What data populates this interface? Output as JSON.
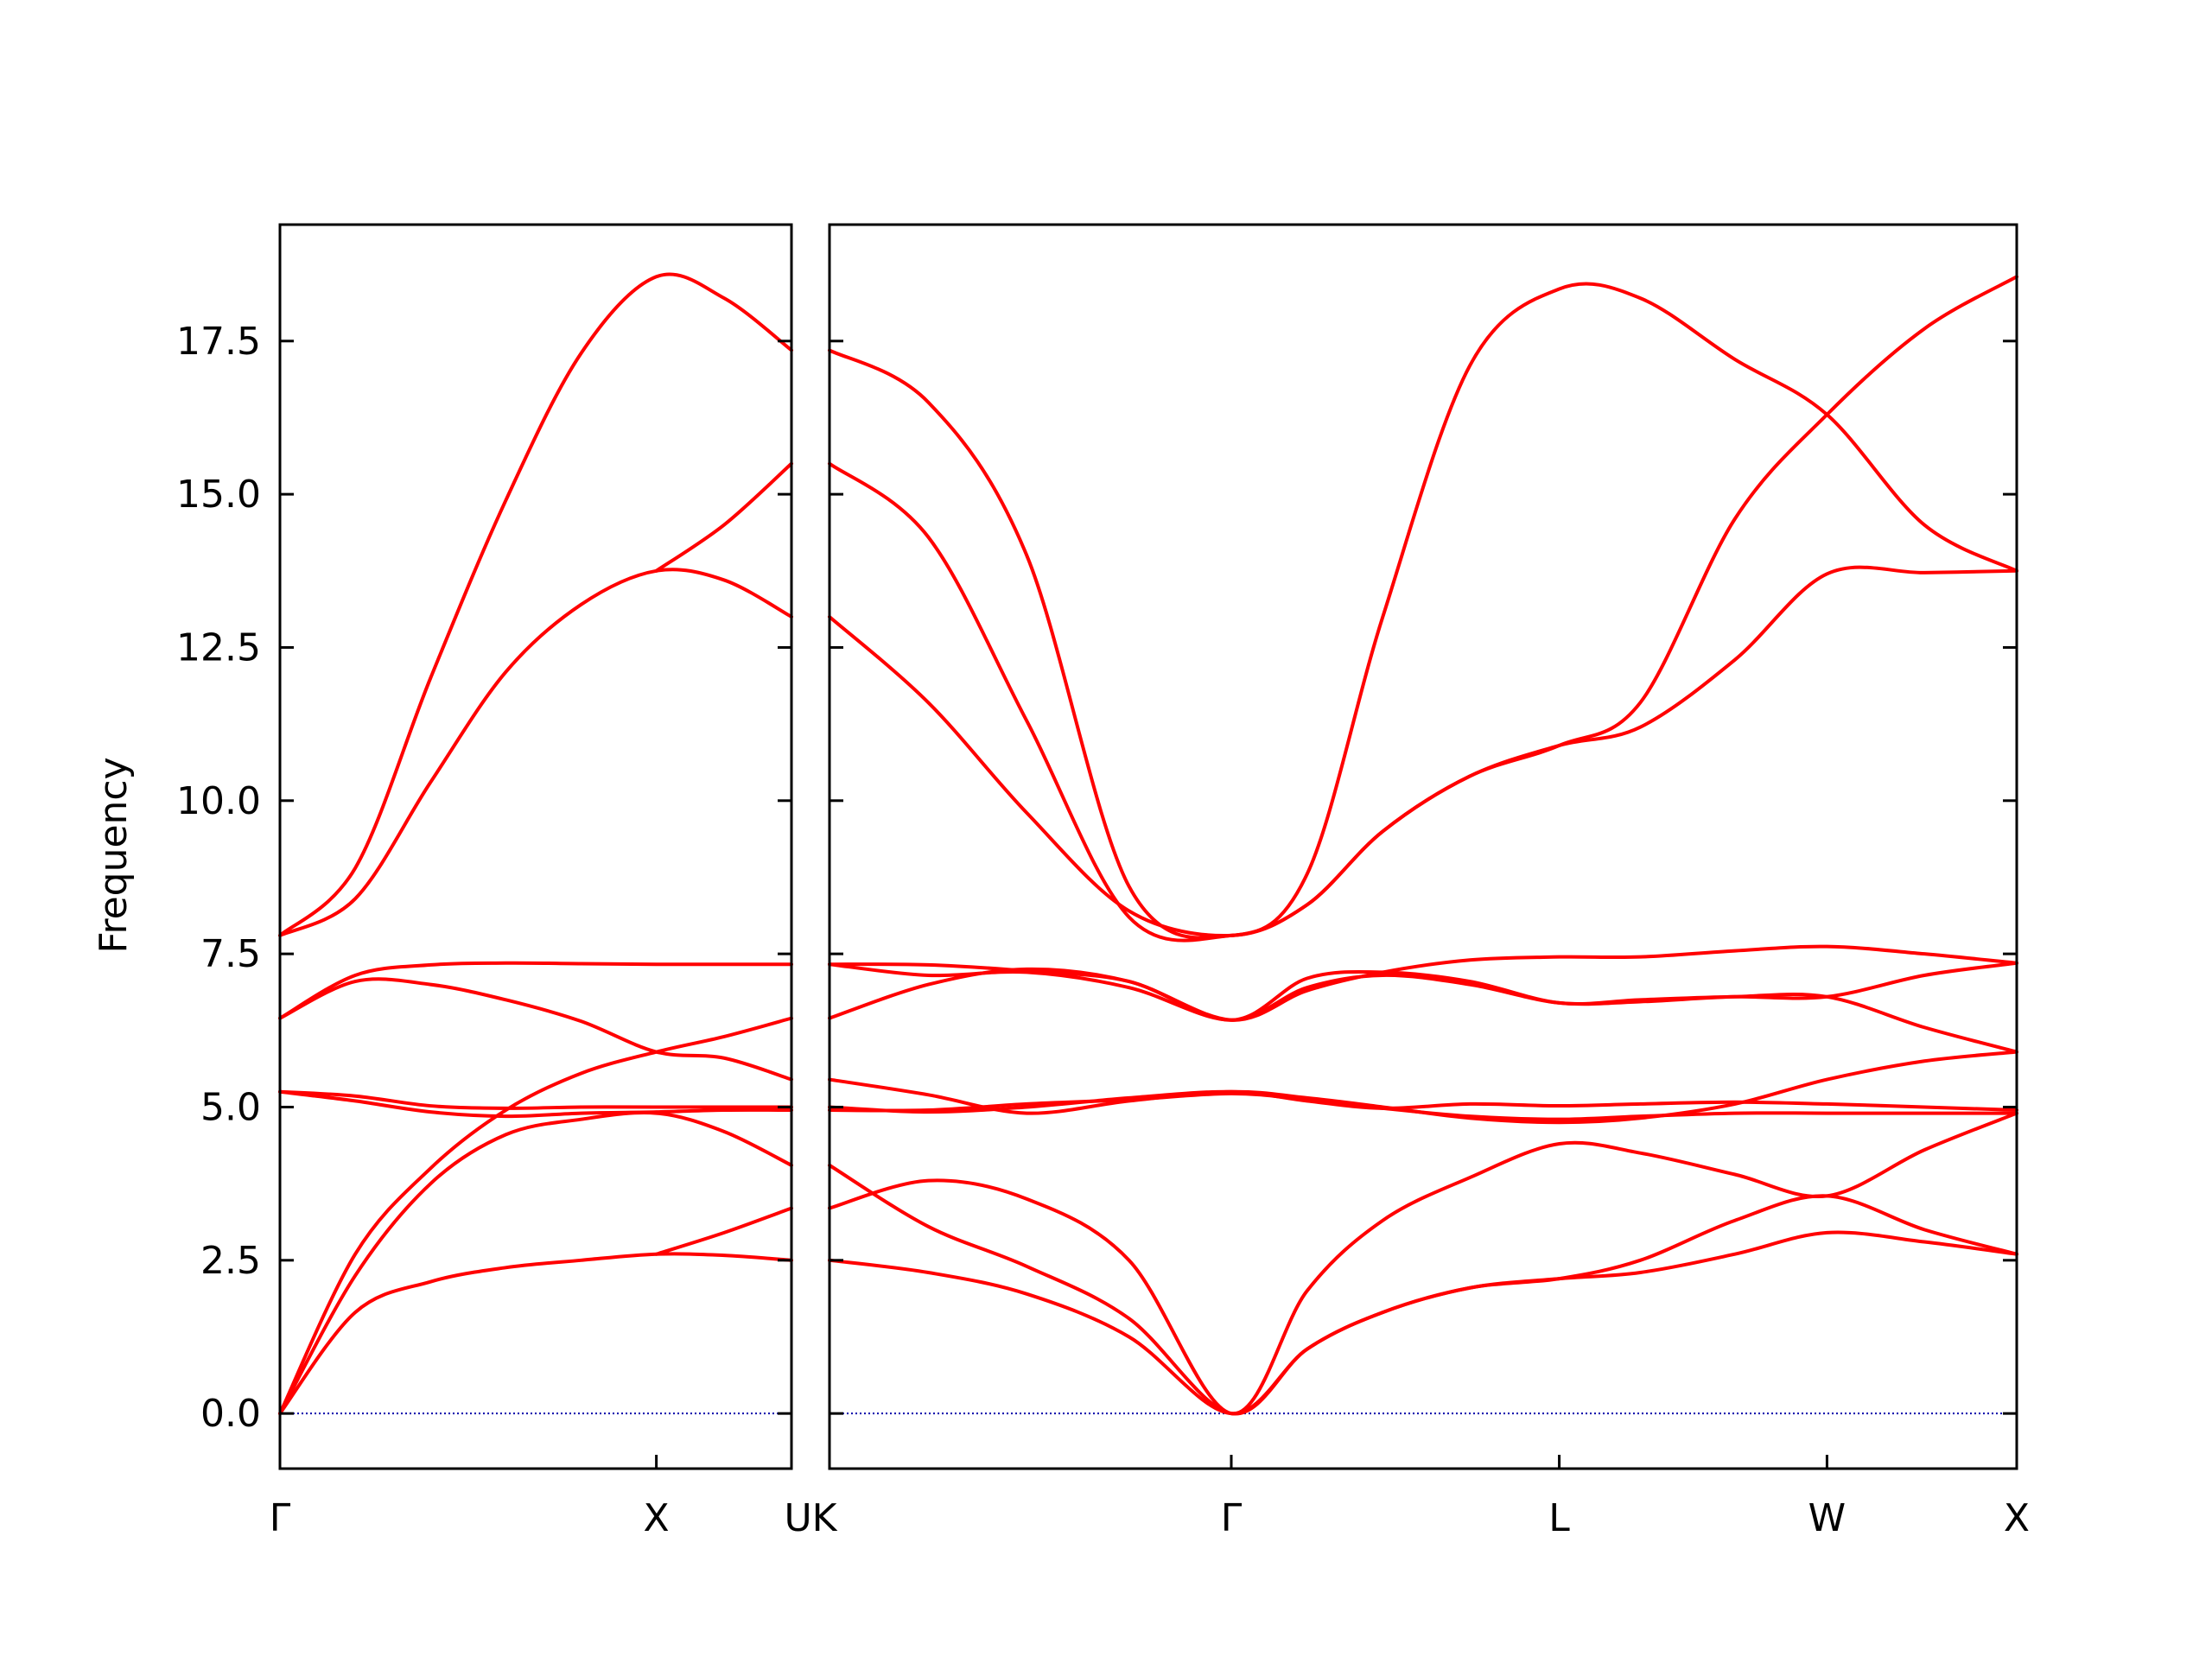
{
  "chart_data": {
    "type": "line",
    "ylabel": "Frequency",
    "xlabel": "",
    "ylim": [
      -0.9,
      19.4
    ],
    "yticks": [
      "0.0",
      "2.5",
      "5.0",
      "7.5",
      "10.0",
      "12.5",
      "15.0",
      "17.5"
    ],
    "ytick_values": [
      0.0,
      2.5,
      5.0,
      7.5,
      10.0,
      12.5,
      15.0,
      17.5
    ],
    "grid": false,
    "legend": "none",
    "line_color": "#ff0000",
    "zero_line_color": "#0000aa",
    "x_tick_labels": [
      "Γ",
      "X",
      "UK",
      "Γ",
      "L",
      "W",
      "X"
    ],
    "panels": [
      {
        "x_range": [
          0,
          1.359
        ],
        "ticks": [
          {
            "x": 0,
            "label": "Γ"
          },
          {
            "x": 1.0,
            "label": "X"
          },
          {
            "x": 1.359,
            "label": "U"
          }
        ],
        "bands": [
          {
            "x": [
              0,
              0.2,
              0.4,
              0.6,
              0.8,
              1.0,
              1.18,
              1.359
            ],
            "y": [
              0.0,
              1.65,
              2.15,
              2.38,
              2.5,
              2.6,
              2.58,
              2.5
            ]
          },
          {
            "x": [
              0,
              0.2,
              0.4,
              0.6,
              0.8,
              1.0,
              1.18,
              1.359
            ],
            "y": [
              0.0,
              2.25,
              3.75,
              4.55,
              4.8,
              4.9,
              4.6,
              4.05
            ]
          },
          {
            "x": [
              0,
              0.2,
              0.4,
              0.6,
              0.8,
              1.0,
              1.18,
              1.359
            ],
            "y": [
              0.0,
              2.6,
              4.0,
              4.95,
              5.55,
              5.9,
              6.15,
              6.45
            ]
          },
          {
            "x": [
              0,
              0.2,
              0.4,
              0.6,
              0.8,
              1.0,
              1.18,
              1.359
            ],
            "y": [
              5.25,
              5.1,
              4.92,
              4.85,
              4.9,
              4.92,
              4.95,
              4.95
            ]
          },
          {
            "x": [
              0,
              0.2,
              0.4,
              0.6,
              0.8,
              1.0,
              1.18,
              1.359
            ],
            "y": [
              5.25,
              5.18,
              5.02,
              4.98,
              5.0,
              5.0,
              5.0,
              5.0
            ]
          },
          {
            "x": [
              0,
              0.2,
              0.4,
              0.6,
              0.8,
              1.0,
              1.18,
              1.359
            ],
            "y": [
              6.45,
              7.05,
              7.0,
              6.75,
              6.4,
              5.9,
              5.8,
              5.45
            ]
          },
          {
            "x": [
              0,
              0.2,
              0.4,
              0.6,
              0.8,
              1.0,
              1.18,
              1.359
            ],
            "y": [
              6.45,
              7.15,
              7.32,
              7.35,
              7.34,
              7.33,
              7.33,
              7.33
            ]
          },
          {
            "x": [
              0,
              0.2,
              0.4,
              0.6,
              0.8,
              1.0,
              1.18,
              1.359
            ],
            "y": [
              7.8,
              8.4,
              10.3,
              12.1,
              13.2,
              13.75,
              13.6,
              13.0
            ]
          },
          {
            "x": [
              0,
              0.2,
              0.4,
              0.6,
              0.8,
              1.0,
              1.18,
              1.359
            ],
            "y": [
              7.8,
              8.9,
              12.0,
              14.9,
              17.3,
              18.55,
              18.2,
              17.35
            ]
          },
          {
            "x": [
              1.0,
              1.18,
              1.359
            ],
            "y": [
              2.6,
              2.95,
              3.35
            ]
          },
          {
            "x": [
              1.0,
              1.18,
              1.359
            ],
            "y": [
              13.75,
              14.5,
              15.5
            ]
          }
        ]
      },
      {
        "x_range": [
          1.359,
          4.494
        ],
        "ticks": [
          {
            "x": 1.359,
            "label": "K"
          },
          {
            "x": 2.42,
            "label": "Γ"
          },
          {
            "x": 3.286,
            "label": "L"
          },
          {
            "x": 3.993,
            "label": "W"
          },
          {
            "x": 4.494,
            "label": "X"
          }
        ],
        "bands": [
          {
            "x": [
              1.359,
              1.62,
              1.88,
              2.15,
              2.42,
              2.62,
              2.82,
              3.05,
              3.286,
              3.5,
              3.75,
              3.993,
              4.25,
              4.494
            ],
            "y": [
              2.5,
              2.3,
              1.95,
              1.25,
              0.0,
              1.05,
              1.65,
              2.05,
              2.2,
              2.3,
              2.6,
              2.95,
              2.8,
              2.6
            ]
          },
          {
            "x": [
              1.359,
              1.62,
              1.88,
              2.15,
              2.42,
              2.62,
              2.82,
              3.05,
              3.286,
              3.5,
              3.75,
              3.993,
              4.25,
              4.494
            ],
            "y": [
              4.05,
              3.05,
              2.4,
              1.55,
              0.0,
              1.05,
              1.65,
              2.05,
              2.2,
              2.5,
              3.15,
              3.55,
              3.0,
              2.6
            ]
          },
          {
            "x": [
              1.359,
              1.62,
              1.88,
              2.15,
              2.42,
              2.62,
              2.82,
              3.05,
              3.286,
              3.5,
              3.75,
              3.993,
              4.25,
              4.494
            ],
            "y": [
              3.35,
              3.8,
              3.5,
              2.5,
              0.0,
              2.0,
              3.15,
              3.85,
              4.4,
              4.25,
              3.9,
              3.55,
              4.3,
              4.9
            ]
          },
          {
            "x": [
              1.359,
              1.62,
              1.88,
              2.15,
              2.42,
              2.62,
              2.82,
              3.05,
              3.286,
              3.5,
              3.75,
              3.993,
              4.25,
              4.494
            ],
            "y": [
              4.95,
              4.95,
              5.05,
              5.12,
              5.22,
              5.12,
              4.98,
              4.85,
              4.8,
              4.85,
              4.9,
              4.9,
              4.9,
              4.9
            ]
          },
          {
            "x": [
              1.359,
              1.62,
              1.88,
              2.15,
              2.42,
              2.62,
              2.82,
              3.05,
              3.286,
              3.5,
              3.75,
              3.993,
              4.25,
              4.494
            ],
            "y": [
              5.0,
              4.92,
              5.0,
              5.15,
              5.25,
              5.1,
              4.98,
              5.05,
              5.02,
              5.05,
              5.08,
              5.05,
              5.0,
              4.95
            ]
          },
          {
            "x": [
              1.359,
              1.62,
              1.88,
              2.15,
              2.42,
              2.62,
              2.82,
              3.05,
              3.286,
              3.5,
              3.75,
              3.993,
              4.25,
              4.494
            ],
            "y": [
              5.45,
              5.2,
              4.9,
              5.1,
              5.25,
              5.15,
              5.0,
              4.82,
              4.75,
              4.82,
              5.05,
              5.45,
              5.75,
              5.9
            ]
          },
          {
            "x": [
              1.359,
              1.62,
              1.88,
              2.15,
              2.42,
              2.62,
              2.82,
              3.05,
              3.286,
              3.5,
              3.75,
              3.993,
              4.25,
              4.494
            ],
            "y": [
              6.45,
              7.0,
              7.25,
              7.05,
              6.42,
              6.9,
              7.2,
              7.4,
              7.45,
              7.45,
              7.55,
              7.62,
              7.5,
              7.35
            ]
          },
          {
            "x": [
              1.359,
              1.62,
              1.88,
              2.15,
              2.42,
              2.62,
              2.82,
              3.05,
              3.286,
              3.5,
              3.75,
              3.993,
              4.25,
              4.494
            ],
            "y": [
              7.33,
              7.15,
              7.2,
              6.95,
              6.42,
              6.95,
              7.15,
              7.0,
              6.7,
              6.72,
              6.8,
              6.8,
              6.3,
              5.9
            ]
          },
          {
            "x": [
              1.359,
              1.62,
              1.88,
              2.15,
              2.42,
              2.62,
              2.82,
              3.05,
              3.286,
              3.5,
              3.75,
              3.993,
              4.25,
              4.494
            ],
            "y": [
              7.33,
              7.32,
              7.22,
              7.05,
              6.42,
              7.1,
              7.2,
              7.05,
              6.7,
              6.75,
              6.8,
              6.8,
              7.15,
              7.35
            ]
          },
          {
            "x": [
              1.359,
              1.62,
              1.88,
              2.15,
              2.42,
              2.62,
              2.82,
              3.05,
              3.286,
              3.5,
              3.75,
              3.993,
              4.25,
              4.494
            ],
            "y": [
              13.0,
              11.6,
              9.8,
              8.2,
              7.8,
              8.3,
              9.5,
              10.4,
              10.9,
              11.2,
              12.3,
              13.7,
              13.72,
              13.75
            ]
          },
          {
            "x": [
              1.359,
              1.62,
              1.88,
              2.15,
              2.42,
              2.62,
              2.82,
              3.05,
              3.286,
              3.5,
              3.75,
              3.993,
              4.25,
              4.494
            ],
            "y": [
              15.5,
              14.3,
              11.3,
              8.1,
              7.8,
              8.3,
              9.5,
              10.4,
              10.9,
              11.6,
              14.6,
              16.3,
              17.7,
              18.55
            ]
          },
          {
            "x": [
              1.359,
              1.62,
              1.88,
              2.15,
              2.42,
              2.62,
              2.82,
              3.05,
              3.286,
              3.5,
              3.75,
              3.993,
              4.25,
              4.494
            ],
            "y": [
              17.35,
              16.5,
              14.0,
              8.6,
              7.8,
              8.8,
              13.0,
              17.1,
              18.35,
              18.2,
              17.2,
              16.3,
              14.5,
              13.75
            ]
          }
        ]
      }
    ]
  }
}
